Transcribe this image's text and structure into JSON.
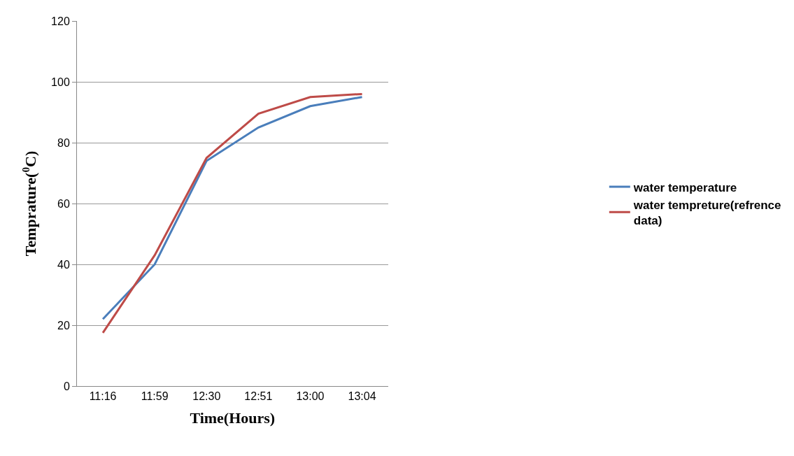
{
  "chart_data": {
    "type": "line",
    "xlabel": "Time(Hours)",
    "ylabel": "Temprature($^{0}$C)",
    "categories": [
      "11:16",
      "11:59",
      "12:30",
      "12:51",
      "13:00",
      "13:04"
    ],
    "series": [
      {
        "name": "water temperature",
        "color": "#4a7ebb",
        "values": [
          22,
          40,
          74,
          85,
          92,
          95
        ]
      },
      {
        "name": "water tempreture(refrence data)",
        "color": "#be4b48",
        "values": [
          17.5,
          43,
          75,
          89.5,
          95,
          96
        ]
      }
    ],
    "ylim": [
      0,
      120
    ],
    "yticks": [
      0,
      20,
      40,
      60,
      80,
      100,
      120
    ],
    "grid": "y",
    "legend": "right",
    "marker": "none",
    "line_style": "solid"
  }
}
